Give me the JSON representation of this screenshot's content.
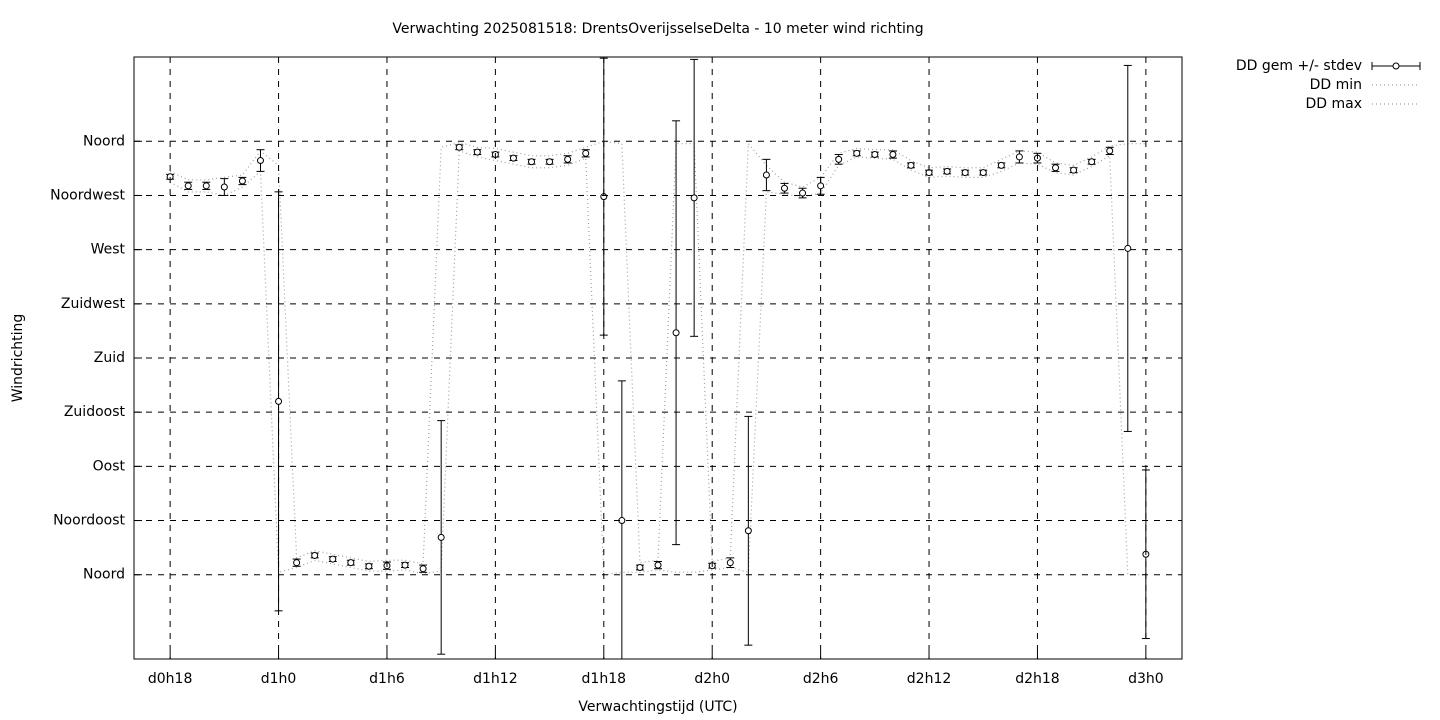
{
  "chart_data": {
    "type": "errorbar",
    "title": "Verwachting 2025081518: DrentsOverijsselseDelta - 10 meter wind richting",
    "x_label": "Verwachtingstijd (UTC)",
    "y_label": "Windrichting",
    "x": [
      18,
      19,
      20,
      21,
      22,
      23,
      24,
      25,
      26,
      27,
      28,
      29,
      30,
      31,
      32,
      33,
      34,
      35,
      36,
      37,
      38,
      39,
      40,
      41,
      42,
      43,
      44,
      45,
      46,
      47,
      48,
      49,
      50,
      51,
      52,
      53,
      54,
      55,
      56,
      57,
      58,
      59,
      60,
      61,
      62,
      63,
      64,
      65,
      66,
      67,
      68,
      69,
      70,
      71,
      72
    ],
    "series": [
      {
        "name": "DD gem +/- stdev",
        "color": "#000000",
        "values": [
          330.5,
          323,
          323,
          322,
          327,
          344,
          144,
          10,
          16,
          13,
          10,
          7,
          7.5,
          8,
          5,
          31,
          355,
          351,
          349,
          346,
          343,
          343,
          345,
          350,
          314,
          45,
          6,
          8,
          201,
          313,
          7.5,
          10,
          36.5,
          332,
          321,
          317,
          323,
          345,
          350,
          349,
          349,
          340,
          334,
          335,
          334,
          334,
          340,
          347,
          346,
          338,
          336,
          343,
          352,
          271,
          17
        ],
        "errors": [
          2,
          3,
          3,
          7,
          3,
          9,
          174,
          3,
          2,
          2,
          2,
          2,
          3,
          2,
          3,
          97,
          2,
          2,
          2,
          2,
          2,
          2,
          3,
          3,
          115,
          116,
          2,
          3,
          176,
          115,
          2,
          4,
          95,
          13,
          4,
          4,
          7,
          4,
          2,
          2,
          3,
          2,
          2,
          2,
          2,
          2,
          2,
          5,
          4,
          3,
          2,
          2,
          3,
          152,
          70
        ]
      },
      {
        "name": "DD min",
        "color": "#a0a0a0",
        "values": [
          326,
          318,
          318,
          315,
          322,
          335,
          2,
          6,
          12,
          9,
          6,
          3,
          3,
          4,
          1,
          3,
          352,
          347,
          344,
          341,
          338,
          338,
          340,
          346,
          0,
          2,
          2,
          4,
          2,
          2,
          4,
          6,
          2,
          318,
          316,
          314,
          317,
          340,
          347,
          346,
          345,
          336,
          330,
          331,
          330,
          330,
          335,
          342,
          341,
          334,
          332,
          339,
          348,
          0,
          0
        ]
      },
      {
        "name": "DD max",
        "color": "#a0a0a0",
        "values": [
          335,
          328,
          328,
          330,
          332,
          352,
          340,
          14,
          20,
          17,
          14,
          11,
          12,
          12,
          9,
          355,
          359,
          355,
          354,
          351,
          348,
          348,
          350,
          355,
          360,
          358,
          10,
          12,
          358,
          358,
          11,
          14,
          358,
          340,
          326,
          322,
          330,
          350,
          354,
          353,
          353,
          344,
          338,
          339,
          338,
          338,
          345,
          352,
          351,
          342,
          340,
          347,
          356,
          358,
          358
        ]
      }
    ],
    "xlim": [
      16,
      74
    ],
    "xticks": [
      {
        "value": 18,
        "label": "d0h18"
      },
      {
        "value": 24,
        "label": "d1h0"
      },
      {
        "value": 30,
        "label": "d1h6"
      },
      {
        "value": 36,
        "label": "d1h12"
      },
      {
        "value": 42,
        "label": "d1h18"
      },
      {
        "value": 48,
        "label": "d2h0"
      },
      {
        "value": 54,
        "label": "d2h6"
      },
      {
        "value": 60,
        "label": "d2h12"
      },
      {
        "value": 66,
        "label": "d2h18"
      },
      {
        "value": 72,
        "label": "d3h0"
      }
    ],
    "ylim": [
      -70,
      430
    ],
    "yticks": [
      {
        "value": 0,
        "label": "Noord"
      },
      {
        "value": 45,
        "label": "Noordoost"
      },
      {
        "value": 90,
        "label": "Oost"
      },
      {
        "value": 135,
        "label": "Zuidoost"
      },
      {
        "value": 180,
        "label": "Zuid"
      },
      {
        "value": 225,
        "label": "Zuidwest"
      },
      {
        "value": 270,
        "label": "West"
      },
      {
        "value": 315,
        "label": "Noordwest"
      },
      {
        "value": 360,
        "label": "Noord"
      }
    ],
    "grid": true
  }
}
